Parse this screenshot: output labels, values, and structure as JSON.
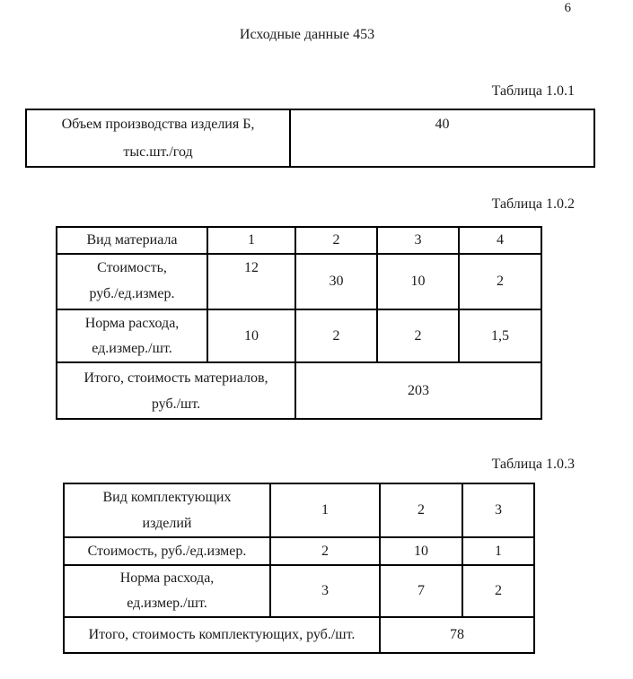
{
  "page": {
    "number": "6",
    "title": "Исходные данные 453"
  },
  "t1": {
    "caption": "Таблица 1.0.1",
    "label": [
      "Объем производства изделия Б,",
      "тыс.шт./год"
    ],
    "value": "40"
  },
  "t2": {
    "caption": "Таблица 1.0.2",
    "header": {
      "label": "Вид материала",
      "cols": [
        "1",
        "2",
        "3",
        "4"
      ]
    },
    "cost": {
      "label": [
        "Стоимость,",
        "руб./ед.измер."
      ],
      "values": [
        "12",
        "30",
        "10",
        "2"
      ]
    },
    "norm": {
      "label": [
        "Норма расхода,",
        "ед.измер./шт."
      ],
      "values": [
        "10",
        "2",
        "2",
        "1,5"
      ]
    },
    "total": {
      "label": [
        "Итого, стоимость материалов,",
        "руб./шт."
      ],
      "value": "203"
    }
  },
  "t3": {
    "caption": "Таблица 1.0.3",
    "header": {
      "label": [
        "Вид комплектующих",
        "изделий"
      ],
      "cols": [
        "1",
        "2",
        "3"
      ]
    },
    "cost": {
      "label": "Стоимость, руб./ед.измер.",
      "values": [
        "2",
        "10",
        "1"
      ]
    },
    "norm": {
      "label": [
        "Норма расхода,",
        "ед.измер./шт."
      ],
      "values": [
        "3",
        "7",
        "2"
      ]
    },
    "total": {
      "label": "Итого, стоимость комплектующих, руб./шт.",
      "value": "78"
    }
  }
}
